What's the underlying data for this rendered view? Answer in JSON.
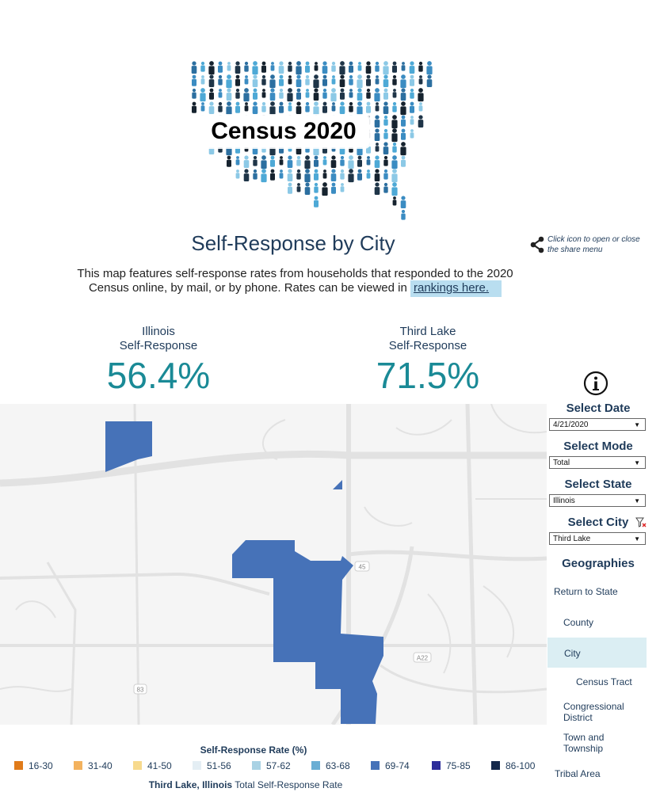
{
  "header": {
    "logo_text": "Census 2020",
    "title": "Self-Response by City",
    "share_hint": "Click icon to open or close the share menu"
  },
  "intro": {
    "line1": "This map features self-response rates from households that responded to the 2020",
    "line2_prefix": "Census online, by mail, or by phone. Rates can be viewed in ",
    "link_text": "rankings here."
  },
  "kpis": {
    "state": {
      "label_line1": "Illinois",
      "label_line2": "Self-Response",
      "value": "56.4%"
    },
    "city": {
      "label_line1": "Third Lake",
      "label_line2": "Self-Response",
      "value": "71.5%"
    }
  },
  "controls": {
    "date": {
      "label": "Select Date",
      "value": "4/21/2020"
    },
    "mode": {
      "label": "Select Mode",
      "value": "Total"
    },
    "state": {
      "label": "Select State",
      "value": "Illinois"
    },
    "city": {
      "label": "Select City",
      "value": "Third Lake"
    }
  },
  "geographies": {
    "heading": "Geographies",
    "items": [
      "Return to State",
      "County",
      "City",
      "Census Tract",
      "Congressional District",
      "Town and Township",
      "Tribal Area"
    ],
    "selected": "City"
  },
  "map": {
    "highway_labels": [
      "45",
      "A22",
      "83"
    ],
    "fill_color": "#4672b8"
  },
  "legend": {
    "title": "Self-Response Rate (%)",
    "items": [
      {
        "label": "16-30",
        "color": "#e07b1a"
      },
      {
        "label": "31-40",
        "color": "#f3b25e"
      },
      {
        "label": "41-50",
        "color": "#f7da8e"
      },
      {
        "label": "51-56",
        "color": "#e4eef4"
      },
      {
        "label": "57-62",
        "color": "#a9d2e4"
      },
      {
        "label": "63-68",
        "color": "#6aaed4"
      },
      {
        "label": "69-74",
        "color": "#4672b8"
      },
      {
        "label": "75-85",
        "color": "#2d2d9a"
      },
      {
        "label": "86-100",
        "color": "#14284a"
      }
    ],
    "caption_bold": "Third Lake, Illinois",
    "caption_rest": " Total Self-Response Rate"
  }
}
